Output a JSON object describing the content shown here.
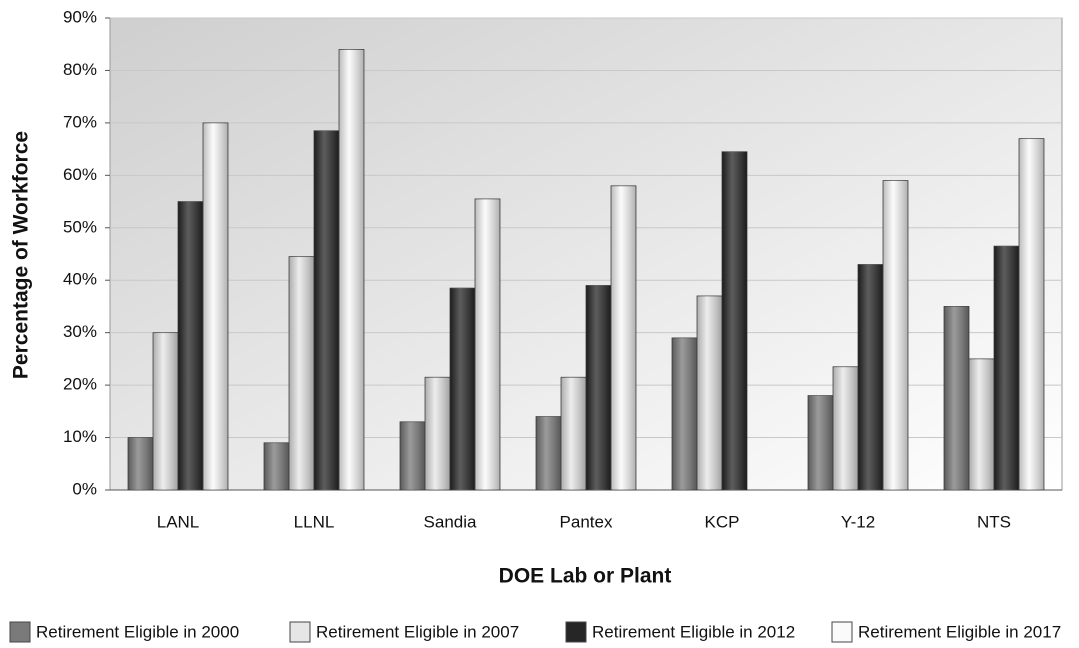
{
  "chart_data": {
    "type": "bar",
    "x_label": "DOE Lab or Plant",
    "y_label": "Percentage of Workforce",
    "categories": [
      "LANL",
      "LLNL",
      "Sandia",
      "Pantex",
      "KCP",
      "Y-12",
      "NTS"
    ],
    "series": [
      {
        "name": "Retirement Eligible in 2000",
        "color": "#7a7a7a",
        "values": [
          10,
          9,
          13,
          14,
          29,
          18,
          35
        ]
      },
      {
        "name": "Retirement Eligible in 2007",
        "color": "#e6e6e6",
        "values": [
          30,
          44.5,
          21.5,
          21.5,
          37,
          23.5,
          25
        ]
      },
      {
        "name": "Retirement Eligible in 2012",
        "color": "#262626",
        "values": [
          55,
          68.5,
          38.5,
          39,
          64.5,
          43,
          46.5
        ]
      },
      {
        "name": "Retirement Eligible in 2017",
        "color": "#fafafa",
        "values": [
          70,
          84,
          55.5,
          58,
          null,
          59,
          67
        ]
      }
    ],
    "ylim": [
      0,
      90
    ],
    "yticks": [
      {
        "value": 0,
        "label": "0%"
      },
      {
        "value": 10,
        "label": "10%"
      },
      {
        "value": 20,
        "label": "20%"
      },
      {
        "value": 30,
        "label": "30%"
      },
      {
        "value": 40,
        "label": "40%"
      },
      {
        "value": 50,
        "label": "50%"
      },
      {
        "value": 60,
        "label": "60%"
      },
      {
        "value": 70,
        "label": "70%"
      },
      {
        "value": 80,
        "label": "80%"
      },
      {
        "value": 90,
        "label": "90%"
      }
    ],
    "grid": true
  }
}
